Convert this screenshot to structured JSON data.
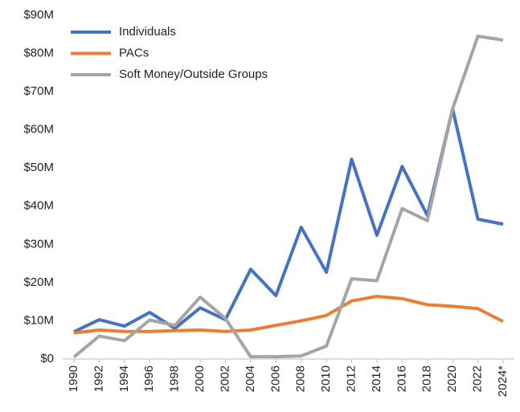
{
  "chart_data": {
    "type": "line",
    "categories": [
      "1990",
      "1992",
      "1994",
      "1996",
      "1998",
      "2000",
      "2002",
      "2004",
      "2006",
      "2008",
      "2010",
      "2012",
      "2014",
      "2016",
      "2018",
      "2020",
      "2022",
      "2024*"
    ],
    "series": [
      {
        "name": "Individuals",
        "color": "#4472c4",
        "values": [
          7100000,
          10300000,
          8600000,
          12200000,
          8000000,
          13400000,
          10300000,
          23500000,
          16600000,
          34500000,
          22700000,
          52300000,
          32400000,
          50400000,
          37600000,
          65500000,
          36600000,
          35300000
        ]
      },
      {
        "name": "PACs",
        "color": "#ed7d31",
        "values": [
          6800000,
          7600000,
          7200000,
          7200000,
          7400000,
          7600000,
          7200000,
          7600000,
          8800000,
          10000000,
          11400000,
          15200000,
          16400000,
          15800000,
          14200000,
          13800000,
          13200000,
          9800000
        ]
      },
      {
        "name": "Soft Money/Outside Groups",
        "color": "#a5a5a5",
        "values": [
          500000,
          6000000,
          4800000,
          10200000,
          8800000,
          16200000,
          10600000,
          600000,
          600000,
          800000,
          3400000,
          21000000,
          20500000,
          39400000,
          36200000,
          65500000,
          84500000,
          83500000
        ]
      }
    ],
    "ylim": [
      0,
      90000000
    ],
    "yticks": [
      {
        "value": 0,
        "label": "$0"
      },
      {
        "value": 10000000,
        "label": "$10M"
      },
      {
        "value": 20000000,
        "label": "$20M"
      },
      {
        "value": 30000000,
        "label": "$30M"
      },
      {
        "value": 40000000,
        "label": "$40M"
      },
      {
        "value": 50000000,
        "label": "$50M"
      },
      {
        "value": 60000000,
        "label": "$60M"
      },
      {
        "value": 70000000,
        "label": "$70M"
      },
      {
        "value": 80000000,
        "label": "$80M"
      },
      {
        "value": 90000000,
        "label": "$90M"
      }
    ],
    "grid": false,
    "legend": "top-left"
  }
}
